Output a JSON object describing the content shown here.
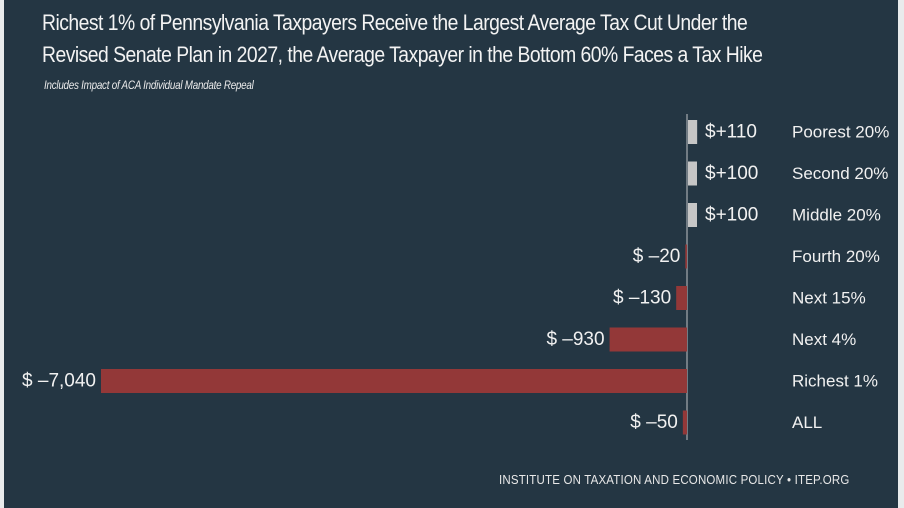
{
  "chart_data": {
    "type": "bar",
    "orientation": "horizontal",
    "title": "Richest 1% of Pennsylvania Taxpayers Receive the Largest Average Tax Cut Under the Revised Senate Plan in 2027, the Average Taxpayer in the Bottom 60% Faces a Tax Hike",
    "title_lines": [
      "Richest 1% of Pennsylvania Taxpayers Receive the Largest Average Tax Cut Under the",
      "Revised Senate Plan in 2027, the Average Taxpayer in the Bottom 60% Faces a Tax Hike"
    ],
    "subtitle": "Includes Impact of ACA Individual Mandate Repeal",
    "source": "INSTITUTE ON TAXATION AND ECONOMIC POLICY • ITEP.ORG",
    "categories": [
      "Poorest 20%",
      "Second 20%",
      "Middle 20%",
      "Fourth 20%",
      "Next 15%",
      "Next 4%",
      "Richest 1%",
      "ALL"
    ],
    "values": [
      110,
      100,
      100,
      -20,
      -130,
      -930,
      -7040,
      -50
    ],
    "value_labels": [
      "$+110",
      "$+100",
      "$+100",
      "$ –20",
      "$ –130",
      "$ –930",
      "$ –7,040",
      "$ –50"
    ],
    "xlim": [
      -7040,
      110
    ],
    "colors": {
      "positive": "#c6c6c6",
      "negative": "#933838",
      "background": "#243643",
      "text": "#f1f1f1",
      "axis": "#8b949a"
    },
    "grid": false,
    "legend": "none"
  }
}
